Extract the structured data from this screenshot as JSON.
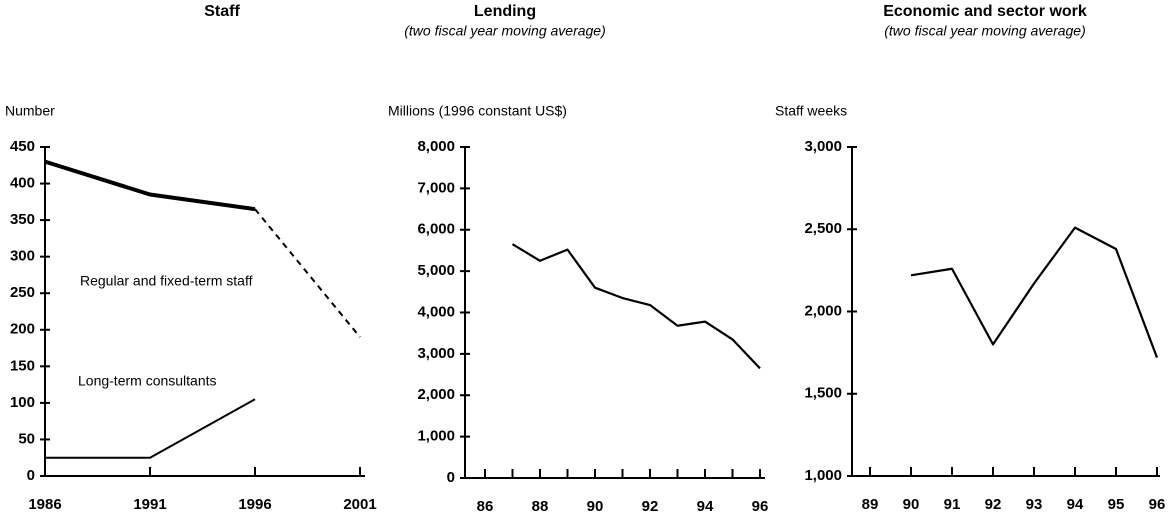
{
  "chart_data": [
    {
      "type": "line",
      "title": "Staff",
      "y_label": "Number",
      "x": [
        1986,
        1991,
        1996,
        2001
      ],
      "xlim": [
        1986,
        2001
      ],
      "xticks": [
        1986,
        1991,
        1996,
        2001
      ],
      "ylim": [
        0,
        450
      ],
      "yticks": [
        0,
        50,
        100,
        150,
        200,
        250,
        300,
        350,
        400,
        450
      ],
      "series": [
        {
          "name": "Regular and fixed-term staff",
          "color": "#000000",
          "values": [
            430,
            385,
            365,
            190
          ],
          "projection_from": 1996
        },
        {
          "name": "Long-term consultants",
          "color": "#000000",
          "values": [
            25,
            25,
            105,
            null
          ]
        }
      ]
    },
    {
      "type": "line",
      "title": "Lending",
      "subtitle": "(two fiscal year moving average)",
      "y_label": "Millions (1996 constant US$)",
      "x": [
        87,
        88,
        89,
        90,
        91,
        92,
        93,
        94,
        95,
        96
      ],
      "xlim": [
        86,
        96
      ],
      "xticks": [
        86,
        88,
        90,
        92,
        94,
        96
      ],
      "xminorticks": [
        87,
        89,
        91,
        93,
        95
      ],
      "ylim": [
        0,
        8000
      ],
      "yticks": [
        0,
        {
          "value": 1000,
          "label": "1,000"
        },
        {
          "value": 2000,
          "label": "2,000"
        },
        {
          "value": 3000,
          "label": "3,000"
        },
        {
          "value": 4000,
          "label": "4,000"
        },
        {
          "value": 5000,
          "label": "5,000"
        },
        {
          "value": 6000,
          "label": "6,000"
        },
        {
          "value": 7000,
          "label": "7,000"
        },
        {
          "value": 8000,
          "label": "8,000"
        }
      ],
      "series": [
        {
          "color": "#000000",
          "values": [
            5650,
            5250,
            5520,
            4600,
            4350,
            4180,
            3680,
            3780,
            3350,
            2650
          ]
        }
      ]
    },
    {
      "type": "line",
      "title": "Economic and sector work",
      "subtitle": "(two fiscal year moving average)",
      "y_label": "Staff weeks",
      "x": [
        90,
        91,
        92,
        93,
        94,
        95,
        96
      ],
      "xlim": [
        89,
        96
      ],
      "xticks": [
        89,
        90,
        91,
        92,
        93,
        94,
        95,
        96
      ],
      "ylim": [
        1000,
        3000
      ],
      "yticks": [
        {
          "value": 1000,
          "label": "1,000"
        },
        {
          "value": 1500,
          "label": "1,500"
        },
        {
          "value": 2000,
          "label": "2,000"
        },
        {
          "value": 2500,
          "label": "2,500"
        },
        {
          "value": 3000,
          "label": "3,000"
        }
      ],
      "series": [
        {
          "color": "#000000",
          "values": [
            2220,
            2260,
            1800,
            2170,
            2510,
            2380,
            1720
          ]
        }
      ]
    }
  ]
}
